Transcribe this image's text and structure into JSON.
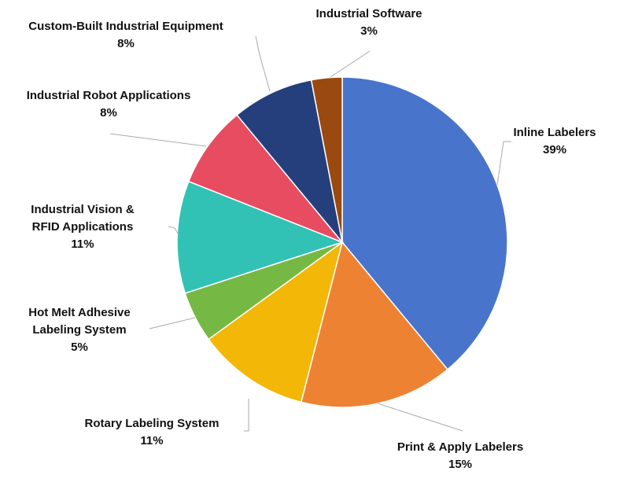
{
  "chart_data": {
    "type": "pie",
    "categories": [
      "Inline Labelers",
      "Print & Apply Labelers",
      "Rotary Labeling System",
      "Hot Melt Adhesive\nLabeling System",
      "Industrial Vision &\nRFID Applications",
      "Industrial Robot Applications",
      "Custom-Built Industrial Equipment",
      "Industrial Software"
    ],
    "values": [
      39,
      15,
      11,
      5,
      11,
      8,
      8,
      3
    ],
    "value_labels": [
      "39%",
      "15%",
      "11%",
      "5%",
      "11%",
      "8%",
      "8%",
      "3%"
    ],
    "colors": [
      "#4874cb",
      "#ee8233",
      "#f2b707",
      "#75b843",
      "#31c2b5",
      "#e74c60",
      "#253f7d",
      "#9a4a10"
    ]
  }
}
